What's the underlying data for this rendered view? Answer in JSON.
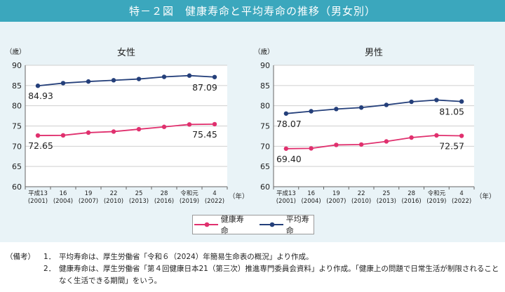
{
  "title": "特－２図　健康寿命と平均寿命の推移（男女別）",
  "chart_data": [
    {
      "type": "line",
      "title": "女性",
      "ylabel": "（歳）",
      "xlabel": "（年）",
      "ylim": [
        60,
        90
      ],
      "yticks": [
        60,
        65,
        70,
        75,
        80,
        85,
        90
      ],
      "categories": [
        [
          "平成13",
          "(2001)"
        ],
        [
          "16",
          "(2004)"
        ],
        [
          "19",
          "(2007)"
        ],
        [
          "22",
          "(2010)"
        ],
        [
          "25",
          "(2013)"
        ],
        [
          "28",
          "(2016)"
        ],
        [
          "令和元",
          "(2019)"
        ],
        [
          "4",
          "(2022)"
        ]
      ],
      "series": [
        {
          "name": "平均寿命",
          "color": "#243f7a",
          "values": [
            84.93,
            85.59,
            85.99,
            86.3,
            86.61,
            87.14,
            87.45,
            87.09
          ]
        },
        {
          "name": "健康寿命",
          "color": "#e0306e",
          "values": [
            72.65,
            72.69,
            73.36,
            73.62,
            74.21,
            74.79,
            75.38,
            75.45
          ]
        }
      ],
      "data_labels": [
        {
          "series": 0,
          "index": 0,
          "text": "84.93"
        },
        {
          "series": 0,
          "index": 7,
          "text": "87.09"
        },
        {
          "series": 1,
          "index": 0,
          "text": "72.65"
        },
        {
          "series": 1,
          "index": 7,
          "text": "75.45"
        }
      ],
      "grid": true
    },
    {
      "type": "line",
      "title": "男性",
      "ylabel": "（歳）",
      "xlabel": "（年）",
      "ylim": [
        60,
        90
      ],
      "yticks": [
        60,
        65,
        70,
        75,
        80,
        85,
        90
      ],
      "categories": [
        [
          "平成13",
          "(2001)"
        ],
        [
          "16",
          "(2004)"
        ],
        [
          "19",
          "(2007)"
        ],
        [
          "22",
          "(2010)"
        ],
        [
          "25",
          "(2013)"
        ],
        [
          "28",
          "(2016)"
        ],
        [
          "令和元",
          "(2019)"
        ],
        [
          "4",
          "(2022)"
        ]
      ],
      "series": [
        {
          "name": "平均寿命",
          "color": "#243f7a",
          "values": [
            78.07,
            78.64,
            79.19,
            79.55,
            80.21,
            80.98,
            81.41,
            81.05
          ]
        },
        {
          "name": "健康寿命",
          "color": "#e0306e",
          "values": [
            69.4,
            69.47,
            70.33,
            70.42,
            71.19,
            72.14,
            72.68,
            72.57
          ]
        }
      ],
      "data_labels": [
        {
          "series": 0,
          "index": 0,
          "text": "78.07"
        },
        {
          "series": 0,
          "index": 7,
          "text": "81.05"
        },
        {
          "series": 1,
          "index": 0,
          "text": "69.40"
        },
        {
          "series": 1,
          "index": 7,
          "text": "72.57"
        }
      ],
      "grid": true
    }
  ],
  "legend": {
    "items": [
      {
        "label": "健康寿命",
        "color": "#e0306e"
      },
      {
        "label": "平均寿命",
        "color": "#243f7a"
      }
    ]
  },
  "notes": {
    "lead": "（備考）",
    "items": [
      {
        "num": "1．",
        "text": "平均寿命は、厚生労働省「令和６（2024）年簡易生命表の概況」より作成。"
      },
      {
        "num": "2．",
        "text": "健康寿命は、厚生労働省「第４回健康日本21（第三次）推進専門委員会資料」より作成。「健康上の問題で日常生活が制限されることなく生活できる期間」をいう。"
      }
    ]
  }
}
